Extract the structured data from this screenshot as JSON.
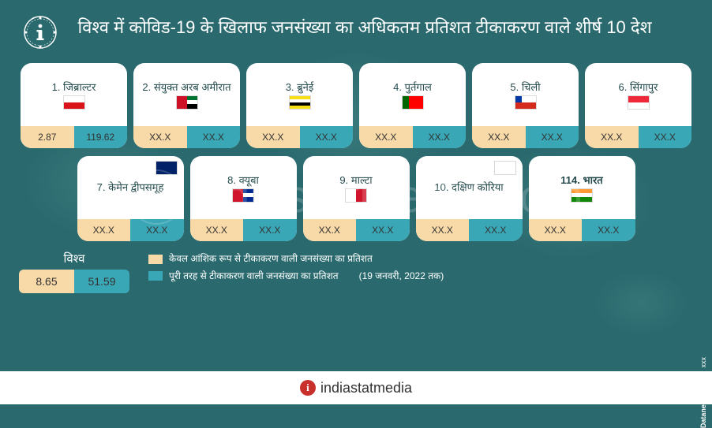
{
  "title": "विश्व में कोविड-19 के खिलाफ जनसंख्या का अधिकतम प्रतिशत टीकाकरण वाले शीर्ष 10 देश",
  "colors": {
    "partial": "#f8d9a8",
    "full": "#39a7b5",
    "bg": "#2a6a6e",
    "text_dark": "#244a4d",
    "accent": "#c9302c"
  },
  "countries": [
    {
      "rank": "1.",
      "name": "जिब्राल्टर",
      "partial": "2.87",
      "full": "119.62",
      "flag": [
        [
          "#ffffff"
        ],
        [
          "#da121a"
        ]
      ],
      "flag_top_right": false
    },
    {
      "rank": "2.",
      "name": "संयुक्त अरब अमीरात",
      "partial": "XX.X",
      "full": "XX.X",
      "flag": [
        [
          "#ce1126",
          "#00732f"
        ],
        [
          "#ce1126",
          "#ffffff"
        ],
        [
          "#ce1126",
          "#000000"
        ]
      ],
      "flag_top_right": false
    },
    {
      "rank": "3.",
      "name": "ब्रुनेई",
      "partial": "XX.X",
      "full": "XX.X",
      "flag": [
        [
          "#f7e017"
        ],
        [
          "#ffffff"
        ],
        [
          "#000000"
        ],
        [
          "#f7e017"
        ]
      ],
      "flag_top_right": false
    },
    {
      "rank": "4.",
      "name": "पुर्तगाल",
      "partial": "XX.X",
      "full": "XX.X",
      "flag": [
        [
          "#006600",
          "#ff0000",
          "#ff0000"
        ]
      ],
      "flag_top_right": false
    },
    {
      "rank": "5.",
      "name": "चिली",
      "partial": "XX.X",
      "full": "XX.X",
      "flag": [
        [
          "#0039a6",
          "#ffffff",
          "#ffffff"
        ],
        [
          "#d52b1e",
          "#d52b1e",
          "#d52b1e"
        ]
      ],
      "flag_top_right": false
    },
    {
      "rank": "6.",
      "name": "सिंगापुर",
      "partial": "XX.X",
      "full": "XX.X",
      "flag": [
        [
          "#ed2939"
        ],
        [
          "#ffffff"
        ]
      ],
      "flag_top_right": false
    },
    {
      "rank": "7.",
      "name": "केमेन द्वीपसमूह",
      "partial": "XX.X",
      "full": "XX.X",
      "flag": [
        [
          "#012169"
        ],
        [
          "#012169"
        ]
      ],
      "flag_top_right": true
    },
    {
      "rank": "8.",
      "name": "क्यूबा",
      "partial": "XX.X",
      "full": "XX.X",
      "flag": [
        [
          "#cf142b",
          "#002a8f"
        ],
        [
          "#cf142b",
          "#ffffff"
        ],
        [
          "#cf142b",
          "#002a8f"
        ]
      ],
      "flag_top_right": false
    },
    {
      "rank": "9.",
      "name": "माल्टा",
      "partial": "XX.X",
      "full": "XX.X",
      "flag": [
        [
          "#ffffff",
          "#cf142b"
        ]
      ],
      "flag_top_right": false
    },
    {
      "rank": "10.",
      "name": "दक्षिण कोरिया",
      "partial": "XX.X",
      "full": "XX.X",
      "flag": [
        [
          "#ffffff"
        ],
        [
          "#ffffff"
        ]
      ],
      "flag_top_right": true
    },
    {
      "rank": "114.",
      "name": "भारत",
      "partial": "XX.X",
      "full": "XX.X",
      "flag": [
        [
          "#ff9933"
        ],
        [
          "#ffffff"
        ],
        [
          "#138808"
        ]
      ],
      "flag_top_right": false,
      "bold": true
    }
  ],
  "world": {
    "label": "विश्व",
    "partial": "8.65",
    "full": "51.59"
  },
  "legend": {
    "partial": "केवल आंशिक रूप से टीकाकरण वाली जनसंख्या का प्रतिशत",
    "full": "पूरी तरह से टीकाकरण वाली जनसंख्या का प्रतिशत",
    "date": "(19 जनवरी, 2022 तक)"
  },
  "source": {
    "label": "Source :",
    "value": "xxx",
    "brand": "Datanet"
  },
  "footer": {
    "brand": "indiastatmedia"
  },
  "watermark": "indiastatmedia.com"
}
